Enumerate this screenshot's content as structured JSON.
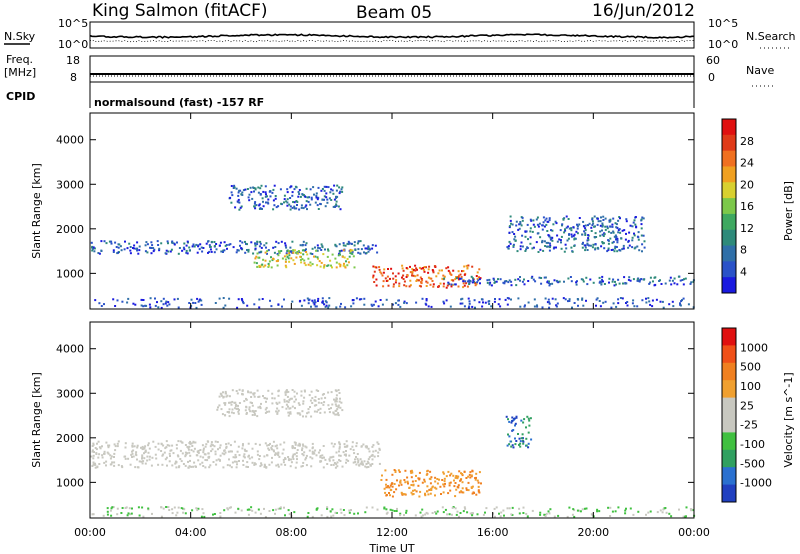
{
  "header": {
    "station": "King Salmon (fitACF)",
    "beam": "Beam 05",
    "date": "16/Jun/2012"
  },
  "status": {
    "nsky_label": "N.Sky",
    "nsearch_label": "N.Search",
    "freq_label_1": "Freq.",
    "freq_label_2": "[MHz]",
    "nave_label": "Nave",
    "cpid_label": "CPID",
    "cpid_text": "normalsound (fast) -157 RF",
    "noise_ticks_left": [
      "10^5",
      "10^0"
    ],
    "noise_ticks_right": [
      "10^5",
      "10^0"
    ],
    "freq_ticks": [
      "18",
      "8"
    ],
    "nave_ticks": [
      "60",
      "0"
    ]
  },
  "chart_data": [
    {
      "type": "heatmap",
      "name": "power",
      "x_ticks": [
        "00:00",
        "04:00",
        "08:00",
        "12:00",
        "16:00",
        "20:00",
        "00:00"
      ],
      "xlim_hours": [
        0,
        24
      ],
      "ylabel": "Slant Range [km]",
      "ylim": [
        200,
        4600
      ],
      "y_ticks": [
        1000,
        2000,
        3000,
        4000
      ],
      "colorbar": {
        "label": "Power [dB]",
        "ticks": [
          "4",
          "8",
          "12",
          "16",
          "20",
          "24",
          "28"
        ],
        "colors": [
          "#1a1adf",
          "#2a52c8",
          "#2f6fa8",
          "#2e8a7a",
          "#3ea860",
          "#7cc84a",
          "#d8d030",
          "#f0a020",
          "#f07020",
          "#e03a18",
          "#e01010"
        ]
      },
      "echo_regions": [
        {
          "t_start": 0.0,
          "t_end": 11.5,
          "r_min": 1450,
          "r_max": 1750,
          "level": "low"
        },
        {
          "t_start": 6.5,
          "t_end": 10.5,
          "r_min": 1150,
          "r_max": 1550,
          "level": "medium"
        },
        {
          "t_start": 11.2,
          "t_end": 15.5,
          "r_min": 700,
          "r_max": 1200,
          "level": "high"
        },
        {
          "t_start": 5.5,
          "t_end": 10.0,
          "r_min": 2450,
          "r_max": 3000,
          "level": "low"
        },
        {
          "t_start": 14.0,
          "t_end": 24.0,
          "r_min": 750,
          "r_max": 950,
          "level": "low"
        },
        {
          "t_start": 16.5,
          "t_end": 22.0,
          "r_min": 1500,
          "r_max": 2300,
          "level": "low"
        }
      ]
    },
    {
      "type": "heatmap",
      "name": "velocity",
      "x_ticks": [
        "00:00",
        "04:00",
        "08:00",
        "12:00",
        "16:00",
        "20:00",
        "00:00"
      ],
      "xlim_hours": [
        0,
        24
      ],
      "xlabel": "Time UT",
      "ylabel": "Slant Range [km]",
      "ylim": [
        200,
        4600
      ],
      "y_ticks": [
        1000,
        2000,
        3000,
        4000
      ],
      "colorbar": {
        "label": "Velocity [m s^-1]",
        "ticks": [
          "1000",
          "500",
          "100",
          "25",
          "-25",
          "-100",
          "-500",
          "-1000"
        ],
        "colors": [
          "#2040c0",
          "#2a70d0",
          "#30a060",
          "#40c040",
          "#c8c8c0",
          "#c8c8c0",
          "#f0a030",
          "#f08020",
          "#f05018",
          "#e01010"
        ]
      },
      "echo_regions": [
        {
          "t_start": 0.0,
          "t_end": 11.5,
          "r_min": 1350,
          "r_max": 1950,
          "velocity": "near-zero"
        },
        {
          "t_start": 11.5,
          "t_end": 15.5,
          "r_min": 700,
          "r_max": 1300,
          "velocity": "negative"
        },
        {
          "t_start": 5.0,
          "t_end": 10.0,
          "r_min": 2500,
          "r_max": 3100,
          "velocity": "near-zero"
        },
        {
          "t_start": 16.5,
          "t_end": 17.5,
          "r_min": 1800,
          "r_max": 2500,
          "velocity": "positive"
        }
      ]
    }
  ]
}
